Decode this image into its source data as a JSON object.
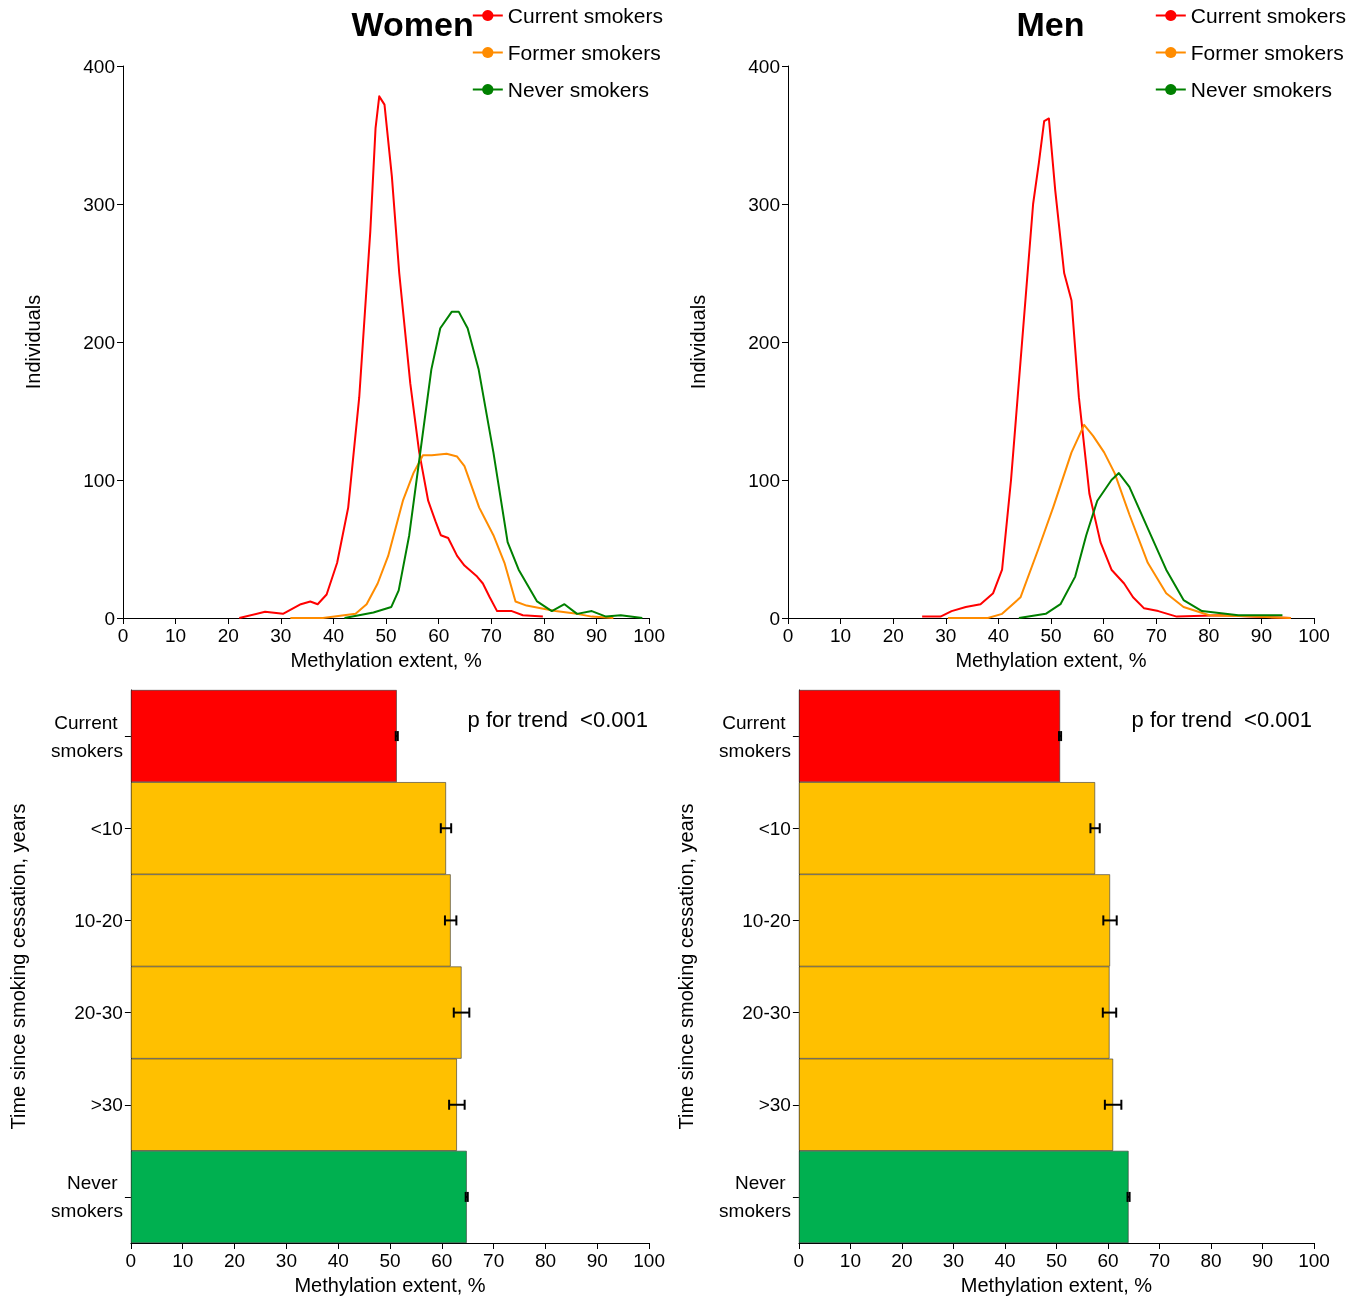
{
  "chart_data": [
    {
      "type": "line",
      "title": "Women",
      "xlabel": "Methylation extent, %",
      "ylabel": "Individuals",
      "xlim": [
        0,
        100
      ],
      "xticks": [
        0,
        10,
        20,
        30,
        40,
        50,
        60,
        70,
        80,
        90,
        100
      ],
      "ylim": [
        0,
        400
      ],
      "yticks": [
        0,
        100,
        200,
        300,
        400
      ],
      "grid": false,
      "legend": "top right",
      "marker": "none",
      "series": [
        {
          "name": "Current smokers",
          "color": "#ff0000",
          "x": [
            22.1,
            27,
            30.4,
            33.8,
            35.6,
            37,
            38.7,
            40.7,
            42.8,
            44.9,
            47,
            48,
            48.7,
            49.7,
            51.1,
            52.5,
            54.6,
            56.3,
            58,
            59.4,
            60.4,
            61.8,
            63.5,
            64.9,
            67.3,
            68.4,
            69.7,
            71.1,
            73.9,
            76,
            79.8
          ],
          "values": [
            0,
            4.5,
            3,
            10,
            12,
            10,
            17,
            40,
            80,
            160,
            280,
            355,
            378,
            372,
            320,
            250,
            170,
            120,
            85,
            70,
            60,
            58,
            45,
            38,
            30,
            25,
            15,
            5,
            5,
            2,
            1
          ]
        },
        {
          "name": "Former smokers",
          "color": "#ff8c00",
          "x": [
            31.8,
            38,
            44.2,
            46.3,
            48.4,
            50.4,
            53.2,
            55.2,
            57,
            58.7,
            61.5,
            63.5,
            64.9,
            67.7,
            70.4,
            72.5,
            74.6,
            76.7,
            79.4,
            82.2,
            86.3,
            89.1,
            93.2
          ],
          "values": [
            0,
            0,
            3,
            10,
            25,
            45,
            85,
            105,
            118,
            118,
            119,
            117,
            110,
            80,
            60,
            40,
            12,
            9,
            7,
            5,
            3,
            1,
            0
          ]
        },
        {
          "name": "Never smokers",
          "color": "#008000",
          "x": [
            42.1,
            47.6,
            51,
            52.4,
            54.4,
            56.5,
            58.6,
            60.3,
            62.5,
            63.8,
            65.5,
            67.6,
            70.4,
            73.1,
            75.2,
            78.7,
            81.5,
            83.9,
            86.3,
            89.1,
            91.8,
            94.6,
            98.7
          ],
          "values": [
            0,
            4,
            8,
            20,
            60,
            120,
            180,
            210,
            222,
            222,
            210,
            180,
            120,
            55,
            35,
            12,
            5,
            10,
            3,
            5,
            1,
            2,
            0
          ]
        }
      ]
    },
    {
      "type": "line",
      "title": "Men",
      "xlabel": "Methylation extent, %",
      "ylabel": "Individuals",
      "xlim": [
        0,
        100
      ],
      "xticks": [
        0,
        10,
        20,
        30,
        40,
        50,
        60,
        70,
        80,
        90,
        100
      ],
      "ylim": [
        0,
        400
      ],
      "yticks": [
        0,
        100,
        200,
        300,
        400
      ],
      "grid": false,
      "legend": "top right",
      "marker": "none",
      "series": [
        {
          "name": "Current smokers",
          "color": "#ff0000",
          "x": [
            25.5,
            29,
            31.1,
            33.8,
            36.6,
            39,
            40.7,
            42.4,
            44.5,
            46.6,
            47.7,
            48.7,
            49.6,
            50.8,
            52.5,
            53.9,
            55.3,
            57.3,
            59.4,
            61.5,
            63.9,
            65.6,
            67.7,
            70.4,
            73.9,
            82.2,
            95.6
          ],
          "values": [
            1,
            1,
            5,
            8,
            10,
            18,
            35,
            100,
            200,
            300,
            330,
            360,
            362,
            310,
            250,
            230,
            160,
            90,
            55,
            35,
            25,
            15,
            7,
            5,
            1,
            2,
            0
          ]
        },
        {
          "name": "Former smokers",
          "color": "#ff8c00",
          "x": [
            30.4,
            38,
            40.7,
            44.2,
            47.6,
            50.4,
            53.9,
            56.3,
            58,
            60.1,
            62.1,
            64.9,
            68.4,
            71.9,
            75.2,
            80.1,
            89.1,
            95.6
          ],
          "values": [
            0,
            0,
            3,
            15,
            50,
            80,
            120,
            140,
            132,
            120,
            105,
            75,
            40,
            18,
            8,
            2,
            1,
            0
          ]
        },
        {
          "name": "Never smokers",
          "color": "#008000",
          "x": [
            43.9,
            49,
            51.8,
            54.6,
            56.7,
            58.8,
            61.5,
            62.9,
            64.9,
            68.4,
            71.9,
            75.2,
            78.7,
            85.6,
            94
          ],
          "values": [
            0,
            3,
            10,
            30,
            60,
            85,
            100,
            105,
            95,
            65,
            35,
            13,
            5,
            2,
            2
          ]
        }
      ]
    },
    {
      "type": "bar",
      "orientation": "horizontal",
      "xlabel": "Methylation extent, %",
      "ylabel": "Time since smoking cessation, years",
      "xlim": [
        0,
        100
      ],
      "xticks": [
        0,
        10,
        20,
        30,
        40,
        50,
        60,
        70,
        80,
        90,
        100
      ],
      "grid": false,
      "annotations": [
        "p for trend  <0.001"
      ],
      "categories": [
        "Current smokers",
        "<10",
        "10-20",
        "20-30",
        ">30",
        "Never smokers"
      ],
      "values": [
        51.3,
        60.8,
        61.7,
        63.8,
        62.9,
        64.8
      ],
      "errors": [
        0.2,
        1.0,
        1.1,
        1.5,
        1.5,
        0.2
      ],
      "colors": [
        "#ff0000",
        "#ffc000",
        "#ffc000",
        "#ffc000",
        "#ffc000",
        "#00b050"
      ]
    },
    {
      "type": "bar",
      "orientation": "horizontal",
      "xlabel": "Methylation extent, %",
      "ylabel": "Time since smoking cessation, years",
      "xlim": [
        0,
        100
      ],
      "xticks": [
        0,
        10,
        20,
        30,
        40,
        50,
        60,
        70,
        80,
        90,
        100
      ],
      "grid": false,
      "annotations": [
        "p for trend  <0.001"
      ],
      "categories": [
        "Current smokers",
        "<10",
        "10-20",
        "20-30",
        ">30",
        "Never smokers"
      ],
      "values": [
        50.7,
        57.5,
        60.4,
        60.3,
        61.0,
        64.0
      ],
      "errors": [
        0.2,
        0.9,
        1.3,
        1.3,
        1.6,
        0.2
      ],
      "colors": [
        "#ff0000",
        "#ffc000",
        "#ffc000",
        "#ffc000",
        "#ffc000",
        "#00b050"
      ]
    }
  ]
}
